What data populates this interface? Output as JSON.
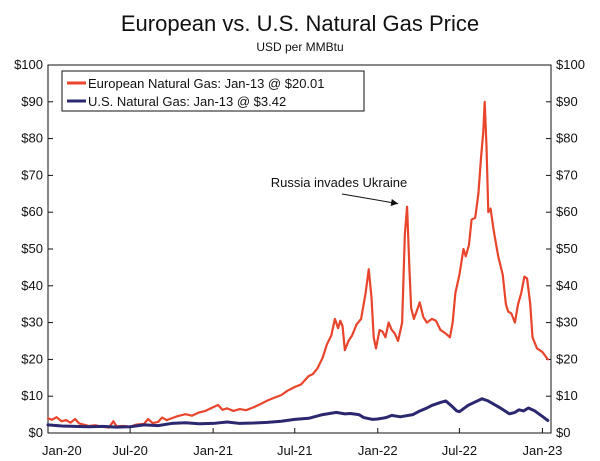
{
  "chart_data": {
    "type": "line",
    "title": "European vs. U.S. Natural Gas Price",
    "subtitle": "USD per MMBtu",
    "ylim": [
      0,
      100
    ],
    "y_ticks": [
      0,
      10,
      20,
      30,
      40,
      50,
      60,
      70,
      80,
      90,
      100
    ],
    "y_tick_labels": [
      "$0",
      "$10",
      "$20",
      "$30",
      "$40",
      "$50",
      "$60",
      "$70",
      "$80",
      "$90",
      "$100"
    ],
    "x_range": [
      "2020-01-01",
      "2023-01-20"
    ],
    "x_ticks": [
      "2020-01-01",
      "2020-07-01",
      "2021-01-01",
      "2021-07-01",
      "2022-01-01",
      "2022-07-01",
      "2023-01-01"
    ],
    "x_tick_labels": [
      "Jan-20",
      "Jul-20",
      "Jan-21",
      "Jul-21",
      "Jan-22",
      "Jul-22",
      "Jan-23"
    ],
    "legend_position": "top-left",
    "grid": false,
    "annotation": {
      "text": "Russia invades Ukraine",
      "target_x": "2022-02-24",
      "target_y": 61.5
    },
    "series": [
      {
        "name": "European Natural Gas: Jan-13 @ $20.01",
        "color": "#e8452c",
        "points": [
          [
            "2020-01-01",
            4.0
          ],
          [
            "2020-01-10",
            3.6
          ],
          [
            "2020-01-20",
            4.3
          ],
          [
            "2020-01-31",
            3.2
          ],
          [
            "2020-02-10",
            3.5
          ],
          [
            "2020-02-20",
            2.8
          ],
          [
            "2020-03-01",
            3.8
          ],
          [
            "2020-03-10",
            2.6
          ],
          [
            "2020-03-20",
            2.3
          ],
          [
            "2020-04-01",
            1.9
          ],
          [
            "2020-04-15",
            2.1
          ],
          [
            "2020-05-01",
            1.7
          ],
          [
            "2020-05-15",
            1.5
          ],
          [
            "2020-05-25",
            3.2
          ],
          [
            "2020-06-01",
            1.8
          ],
          [
            "2020-06-15",
            1.9
          ],
          [
            "2020-07-01",
            1.7
          ],
          [
            "2020-07-15",
            2.3
          ],
          [
            "2020-08-01",
            2.5
          ],
          [
            "2020-08-10",
            3.8
          ],
          [
            "2020-08-20",
            2.7
          ],
          [
            "2020-09-01",
            3.0
          ],
          [
            "2020-09-10",
            4.2
          ],
          [
            "2020-09-20",
            3.5
          ],
          [
            "2020-10-01",
            4.0
          ],
          [
            "2020-10-15",
            4.6
          ],
          [
            "2020-11-01",
            5.1
          ],
          [
            "2020-11-15",
            4.7
          ],
          [
            "2020-12-01",
            5.6
          ],
          [
            "2020-12-15",
            6.0
          ],
          [
            "2021-01-01",
            7.0
          ],
          [
            "2021-01-12",
            7.6
          ],
          [
            "2021-01-22",
            6.3
          ],
          [
            "2021-02-01",
            6.7
          ],
          [
            "2021-02-15",
            6.0
          ],
          [
            "2021-03-01",
            6.5
          ],
          [
            "2021-03-15",
            6.2
          ],
          [
            "2021-04-01",
            7.0
          ],
          [
            "2021-04-15",
            7.8
          ],
          [
            "2021-05-01",
            8.8
          ],
          [
            "2021-05-15",
            9.5
          ],
          [
            "2021-06-01",
            10.3
          ],
          [
            "2021-06-15",
            11.5
          ],
          [
            "2021-07-01",
            12.5
          ],
          [
            "2021-07-15",
            13.2
          ],
          [
            "2021-08-01",
            15.5
          ],
          [
            "2021-08-10",
            16.0
          ],
          [
            "2021-08-20",
            17.5
          ],
          [
            "2021-09-01",
            20.5
          ],
          [
            "2021-09-10",
            24.0
          ],
          [
            "2021-09-20",
            26.5
          ],
          [
            "2021-09-28",
            31.0
          ],
          [
            "2021-10-05",
            28.5
          ],
          [
            "2021-10-10",
            30.5
          ],
          [
            "2021-10-15",
            29.0
          ],
          [
            "2021-10-20",
            22.5
          ],
          [
            "2021-10-28",
            25.0
          ],
          [
            "2021-11-05",
            26.5
          ],
          [
            "2021-11-15",
            29.5
          ],
          [
            "2021-11-25",
            31.0
          ],
          [
            "2021-12-05",
            38.0
          ],
          [
            "2021-12-12",
            44.5
          ],
          [
            "2021-12-18",
            37.0
          ],
          [
            "2021-12-23",
            26.0
          ],
          [
            "2021-12-28",
            23.0
          ],
          [
            "2022-01-05",
            28.0
          ],
          [
            "2022-01-12",
            27.5
          ],
          [
            "2022-01-18",
            26.0
          ],
          [
            "2022-01-25",
            30.0
          ],
          [
            "2022-02-01",
            28.0
          ],
          [
            "2022-02-08",
            27.0
          ],
          [
            "2022-02-15",
            25.0
          ],
          [
            "2022-02-24",
            30.0
          ],
          [
            "2022-03-02",
            54.0
          ],
          [
            "2022-03-07",
            61.5
          ],
          [
            "2022-03-12",
            45.0
          ],
          [
            "2022-03-16",
            34.0
          ],
          [
            "2022-03-22",
            31.0
          ],
          [
            "2022-03-28",
            33.0
          ],
          [
            "2022-04-04",
            35.5
          ],
          [
            "2022-04-12",
            31.5
          ],
          [
            "2022-04-20",
            30.0
          ],
          [
            "2022-05-01",
            31.0
          ],
          [
            "2022-05-10",
            30.5
          ],
          [
            "2022-05-20",
            28.0
          ],
          [
            "2022-06-01",
            27.0
          ],
          [
            "2022-06-10",
            26.0
          ],
          [
            "2022-06-16",
            30.0
          ],
          [
            "2022-06-22",
            38.0
          ],
          [
            "2022-07-01",
            43.0
          ],
          [
            "2022-07-10",
            50.0
          ],
          [
            "2022-07-15",
            48.0
          ],
          [
            "2022-07-22",
            51.0
          ],
          [
            "2022-07-28",
            58.0
          ],
          [
            "2022-08-05",
            58.5
          ],
          [
            "2022-08-12",
            65.0
          ],
          [
            "2022-08-18",
            75.0
          ],
          [
            "2022-08-23",
            82.0
          ],
          [
            "2022-08-26",
            90.0
          ],
          [
            "2022-08-30",
            78.0
          ],
          [
            "2022-09-03",
            60.0
          ],
          [
            "2022-09-08",
            61.0
          ],
          [
            "2022-09-15",
            55.0
          ],
          [
            "2022-09-25",
            48.0
          ],
          [
            "2022-10-05",
            43.0
          ],
          [
            "2022-10-12",
            35.0
          ],
          [
            "2022-10-17",
            33.0
          ],
          [
            "2022-10-24",
            32.5
          ],
          [
            "2022-11-01",
            30.0
          ],
          [
            "2022-11-08",
            35.0
          ],
          [
            "2022-11-15",
            38.0
          ],
          [
            "2022-11-22",
            42.5
          ],
          [
            "2022-11-28",
            42.0
          ],
          [
            "2022-12-05",
            35.0
          ],
          [
            "2022-12-10",
            26.0
          ],
          [
            "2022-12-20",
            23.0
          ],
          [
            "2023-01-01",
            22.0
          ],
          [
            "2023-01-13",
            20.0
          ]
        ]
      },
      {
        "name": "U.S. Natural Gas: Jan-13 @ $3.42",
        "color": "#2b2870",
        "points": [
          [
            "2020-01-01",
            2.2
          ],
          [
            "2020-02-01",
            1.9
          ],
          [
            "2020-03-01",
            1.8
          ],
          [
            "2020-04-01",
            1.7
          ],
          [
            "2020-05-01",
            1.8
          ],
          [
            "2020-06-01",
            1.6
          ],
          [
            "2020-07-01",
            1.7
          ],
          [
            "2020-08-01",
            2.2
          ],
          [
            "2020-09-01",
            2.0
          ],
          [
            "2020-10-01",
            2.6
          ],
          [
            "2020-11-01",
            2.8
          ],
          [
            "2020-12-01",
            2.5
          ],
          [
            "2021-01-01",
            2.6
          ],
          [
            "2021-02-01",
            3.0
          ],
          [
            "2021-03-01",
            2.6
          ],
          [
            "2021-04-01",
            2.7
          ],
          [
            "2021-05-01",
            2.9
          ],
          [
            "2021-06-01",
            3.2
          ],
          [
            "2021-07-01",
            3.7
          ],
          [
            "2021-08-01",
            4.0
          ],
          [
            "2021-09-01",
            5.0
          ],
          [
            "2021-10-01",
            5.6
          ],
          [
            "2021-10-20",
            5.2
          ],
          [
            "2021-11-01",
            5.3
          ],
          [
            "2021-11-20",
            5.0
          ],
          [
            "2021-12-01",
            4.2
          ],
          [
            "2021-12-20",
            3.7
          ],
          [
            "2022-01-01",
            3.8
          ],
          [
            "2022-01-20",
            4.2
          ],
          [
            "2022-02-01",
            4.8
          ],
          [
            "2022-02-20",
            4.4
          ],
          [
            "2022-03-01",
            4.6
          ],
          [
            "2022-03-20",
            5.0
          ],
          [
            "2022-04-01",
            5.8
          ],
          [
            "2022-04-20",
            6.8
          ],
          [
            "2022-05-01",
            7.5
          ],
          [
            "2022-05-20",
            8.3
          ],
          [
            "2022-06-01",
            8.7
          ],
          [
            "2022-06-15",
            7.2
          ],
          [
            "2022-06-25",
            6.0
          ],
          [
            "2022-07-01",
            5.8
          ],
          [
            "2022-07-20",
            7.5
          ],
          [
            "2022-08-01",
            8.2
          ],
          [
            "2022-08-20",
            9.3
          ],
          [
            "2022-09-01",
            8.8
          ],
          [
            "2022-09-20",
            7.5
          ],
          [
            "2022-10-01",
            6.7
          ],
          [
            "2022-10-20",
            5.2
          ],
          [
            "2022-11-01",
            5.6
          ],
          [
            "2022-11-10",
            6.3
          ],
          [
            "2022-11-20",
            6.0
          ],
          [
            "2022-12-01",
            6.8
          ],
          [
            "2022-12-15",
            6.0
          ],
          [
            "2023-01-01",
            4.5
          ],
          [
            "2023-01-13",
            3.4
          ]
        ]
      }
    ]
  }
}
